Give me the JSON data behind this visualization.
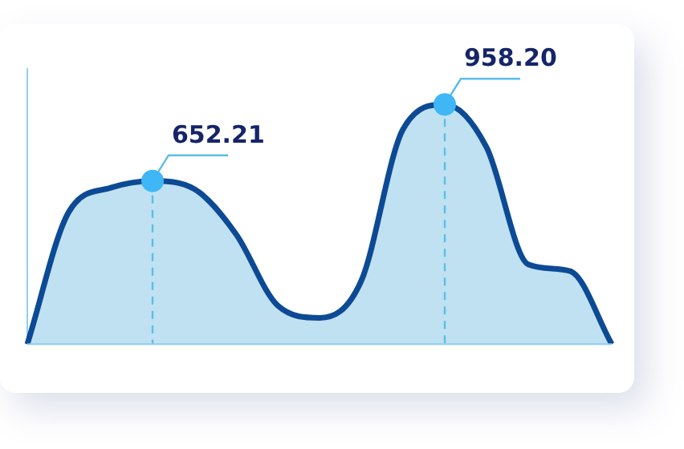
{
  "chart_data": {
    "type": "area",
    "categories": [
      null,
      null,
      null,
      null,
      null,
      null,
      null,
      null,
      null,
      null,
      null,
      null,
      null,
      null,
      null
    ],
    "series": [
      {
        "color": "#0d4a95",
        "values": [
          0,
          530,
          625,
          652.21,
          620,
          440,
          154,
          105,
          253,
          859,
          958.2,
          787,
          319,
          292,
          0
        ],
        "value_labels": [
          null,
          null,
          null,
          "652.21",
          null,
          null,
          null,
          null,
          null,
          null,
          "958.20",
          null,
          null,
          null,
          null
        ]
      }
    ],
    "ylim": [
      0,
      1100
    ],
    "legend": false,
    "marker": "none",
    "line_style": "solid"
  }
}
